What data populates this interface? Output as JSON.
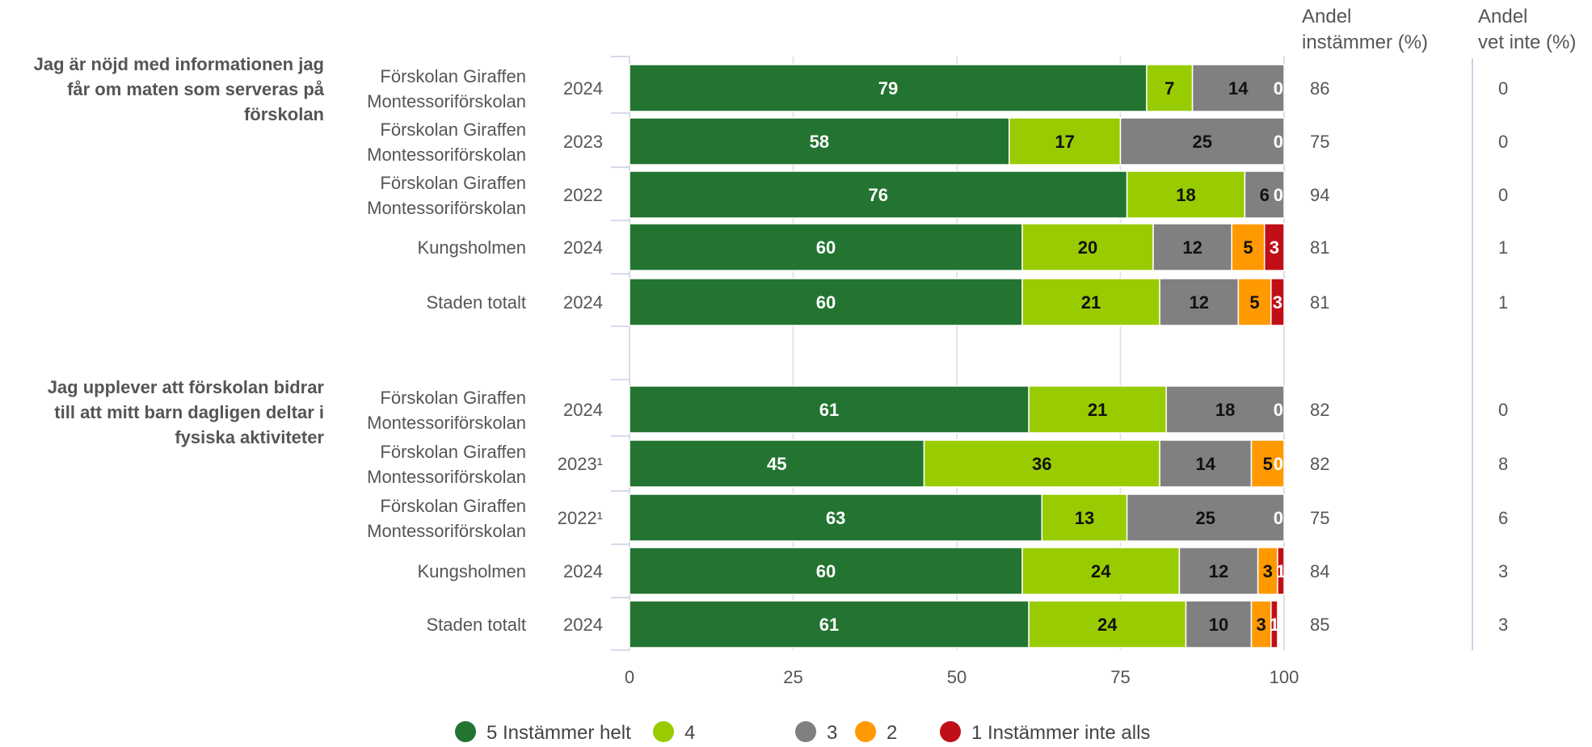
{
  "chart_data": {
    "type": "bar",
    "orientation": "horizontal",
    "stacked": true,
    "xlim": [
      0,
      100
    ],
    "xticks": [
      "0",
      "25",
      "50",
      "75",
      "100"
    ],
    "columns": {
      "instammer": [
        "Andel",
        "instämmer (%)"
      ],
      "vet_inte": [
        "Andel",
        "vet inte (%)"
      ]
    },
    "legend": {
      "position": "bottom",
      "entries": [
        {
          "label": "5 Instämmer helt",
          "color": "#237431"
        },
        {
          "label": "4",
          "color": "#99cc00"
        },
        {
          "label": "3",
          "color": "#808080"
        },
        {
          "label": "2",
          "color": "#ff9900"
        },
        {
          "label": "1 Instämmer inte alls",
          "color": "#c00f16"
        }
      ]
    },
    "groups": [
      {
        "question": [
          "Jag är nöjd med informationen jag",
          "får om maten som serveras på",
          "förskolan"
        ],
        "rows": [
          {
            "unit": [
              "Förskolan Giraffen",
              "Montessoriförskolan"
            ],
            "year": "2024",
            "values": [
              79,
              7,
              14,
              0,
              0
            ],
            "instammer": "86",
            "vet_inte": "0"
          },
          {
            "unit": [
              "Förskolan Giraffen",
              "Montessoriförskolan"
            ],
            "year": "2023",
            "values": [
              58,
              17,
              25,
              0,
              0
            ],
            "instammer": "75",
            "vet_inte": "0"
          },
          {
            "unit": [
              "Förskolan Giraffen",
              "Montessoriförskolan"
            ],
            "year": "2022",
            "values": [
              76,
              18,
              6,
              0,
              0
            ],
            "instammer": "94",
            "vet_inte": "0"
          },
          {
            "unit": [
              "Kungsholmen"
            ],
            "year": "2024",
            "values": [
              60,
              20,
              12,
              5,
              3
            ],
            "instammer": "81",
            "vet_inte": "1"
          },
          {
            "unit": [
              "Staden totalt"
            ],
            "year": "2024",
            "values": [
              60,
              21,
              12,
              5,
              3
            ],
            "instammer": "81",
            "vet_inte": "1"
          }
        ]
      },
      {
        "question": [
          "Jag upplever att förskolan bidrar",
          "till att mitt barn dagligen deltar i",
          "fysiska aktiviteter"
        ],
        "rows": [
          {
            "unit": [
              "Förskolan Giraffen",
              "Montessoriförskolan"
            ],
            "year": "2024",
            "values": [
              61,
              21,
              18,
              0,
              0
            ],
            "instammer": "82",
            "vet_inte": "0"
          },
          {
            "unit": [
              "Förskolan Giraffen",
              "Montessoriförskolan"
            ],
            "year": "2023¹",
            "values": [
              45,
              36,
              14,
              5,
              0
            ],
            "instammer": "82",
            "vet_inte": "8"
          },
          {
            "unit": [
              "Förskolan Giraffen",
              "Montessoriförskolan"
            ],
            "year": "2022¹",
            "values": [
              63,
              13,
              25,
              0,
              0
            ],
            "instammer": "75",
            "vet_inte": "6"
          },
          {
            "unit": [
              "Kungsholmen"
            ],
            "year": "2024",
            "values": [
              60,
              24,
              12,
              3,
              1
            ],
            "instammer": "84",
            "vet_inte": "3"
          },
          {
            "unit": [
              "Staden totalt"
            ],
            "year": "2024",
            "values": [
              61,
              24,
              10,
              3,
              1
            ],
            "instammer": "85",
            "vet_inte": "3"
          }
        ]
      }
    ]
  }
}
